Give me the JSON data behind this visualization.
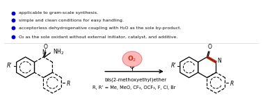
{
  "bg_color": "#ffffff",
  "bullet_color": "#0000cc",
  "bullet_points": [
    "O₂ as the sole oxidant without external initiator, catalyst, and additive.",
    "acceptorless dehydrogenative coupling with H₂O as the sole by-product.",
    "simple and clean conditions for easy handling.",
    "applicable to gram-scale synthesis."
  ],
  "arrow_color": "#000000",
  "reagent_text": "bis(2-methoxyethyl)ether",
  "r_sub": "R, R’ = Me, MeO, CF₃, OCF₃, F, Cl, Br",
  "o2_fill": "#ffb0b0",
  "o2_edge": "#e08080",
  "o2_text_color": "#cc2200",
  "highlight_color": "#cc2200",
  "figsize": [
    3.78,
    1.51
  ],
  "dpi": 100
}
